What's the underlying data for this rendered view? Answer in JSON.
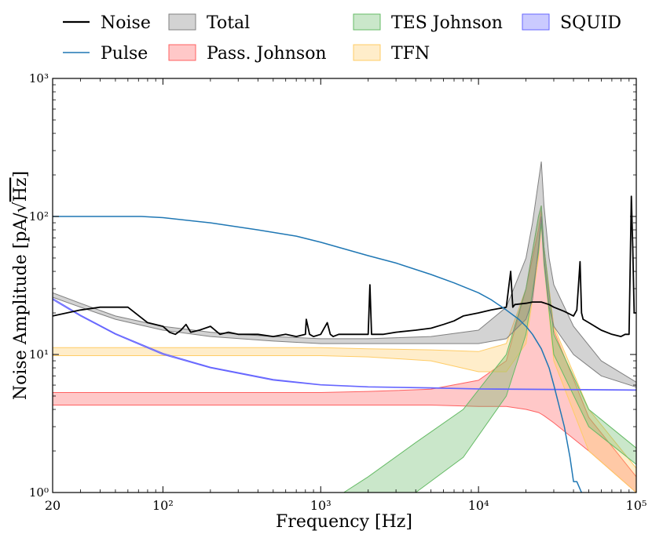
{
  "chart_data": {
    "type": "line",
    "xlabel": "Frequency [Hz]",
    "ylabel_prefix": "Noise Amplitude [pA/",
    "ylabel_sqrt": "Hz",
    "ylabel_suffix": "]",
    "x_scale": "log",
    "y_scale": "log",
    "xlim": [
      20,
      100000
    ],
    "ylim": [
      1,
      1000
    ],
    "grid": false,
    "legend_position": "top",
    "x_ticks": [
      {
        "value": 20,
        "label": "20"
      },
      {
        "value": 100,
        "label": "10²"
      },
      {
        "value": 1000,
        "label": "10³"
      },
      {
        "value": 10000,
        "label": "10⁴"
      },
      {
        "value": 100000,
        "label": "10⁵"
      }
    ],
    "y_ticks": [
      {
        "value": 1,
        "label": "10⁰"
      },
      {
        "value": 10,
        "label": "10¹"
      },
      {
        "value": 100,
        "label": "10²"
      },
      {
        "value": 1000,
        "label": "10³"
      }
    ],
    "legend": [
      {
        "name": "Noise",
        "kind": "line",
        "color": "#000000"
      },
      {
        "name": "Pulse",
        "kind": "line",
        "color": "#1f77b4"
      },
      {
        "name": "Total",
        "kind": "band",
        "color": "#808080"
      },
      {
        "name": "Pass. Johnson",
        "kind": "band",
        "color": "#ff6060"
      },
      {
        "name": "TES Johnson",
        "kind": "band",
        "color": "#66bb66"
      },
      {
        "name": "TFN",
        "kind": "band",
        "color": "#ffcc66"
      },
      {
        "name": "SQUID",
        "kind": "band",
        "color": "#6666ff"
      }
    ],
    "series": [
      {
        "name": "Noise",
        "kind": "line",
        "color": "#000000",
        "x": [
          20,
          30,
          40,
          60,
          80,
          100,
          110,
          120,
          130,
          140,
          150,
          170,
          200,
          230,
          260,
          300,
          400,
          500,
          600,
          700,
          800,
          810,
          850,
          900,
          1000,
          1100,
          1150,
          1200,
          1300,
          1500,
          2000,
          2050,
          2100,
          2500,
          3000,
          4000,
          5000,
          6000,
          7000,
          8000,
          10000,
          12000,
          15000,
          16000,
          16500,
          17000,
          20000,
          22000,
          25000,
          28000,
          30000,
          35000,
          40000,
          42000,
          44000,
          45000,
          46000,
          50000,
          60000,
          70000,
          80000,
          85000,
          90000,
          93000,
          95000,
          97000,
          100000
        ],
        "y": [
          19,
          21,
          22,
          22,
          17,
          16,
          14.5,
          14,
          15,
          16.5,
          14.5,
          15,
          16,
          14,
          14.5,
          14,
          14,
          13.5,
          14,
          13.5,
          14,
          18,
          14,
          13.5,
          14,
          17,
          14,
          13.5,
          14,
          14,
          14,
          32,
          14,
          14,
          14.5,
          15,
          15.5,
          16.5,
          17.5,
          19,
          20,
          21,
          22,
          40,
          22,
          23,
          23.5,
          24,
          24,
          23,
          22,
          20.5,
          19,
          21,
          47,
          20,
          18,
          17,
          15,
          14,
          13.5,
          14,
          14,
          140,
          60,
          20,
          20
        ]
      },
      {
        "name": "Pulse",
        "kind": "line",
        "color": "#1f77b4",
        "x": [
          20,
          50,
          73,
          100,
          200,
          400,
          700,
          1000,
          2000,
          3000,
          5000,
          7000,
          10000,
          12000,
          15000,
          18000,
          20000,
          22000,
          25000,
          28000,
          30000,
          32000,
          35000,
          38000,
          40000,
          42000,
          45000
        ],
        "y": [
          100,
          100,
          100,
          98,
          90,
          80,
          72,
          65,
          52,
          46,
          38,
          33,
          28,
          25,
          21,
          18,
          16,
          14,
          11,
          8,
          6,
          4.5,
          3,
          1.8,
          1.2,
          1.2,
          1
        ]
      },
      {
        "name": "Total",
        "kind": "band",
        "color": "#808080",
        "x": [
          20,
          30,
          50,
          100,
          200,
          500,
          1000,
          2000,
          5000,
          10000,
          15000,
          20000,
          22000,
          24000,
          25000,
          26000,
          28000,
          30000,
          40000,
          60000,
          100000
        ],
        "y_low": [
          26,
          22,
          18,
          15,
          13.5,
          12.5,
          12,
          12,
          12,
          12,
          13,
          18,
          25,
          60,
          100,
          50,
          22,
          16,
          10,
          7,
          5.8
        ],
        "y_high": [
          28,
          23.5,
          19,
          16,
          14.5,
          13.5,
          13,
          13,
          13.5,
          15,
          22,
          50,
          90,
          180,
          250,
          120,
          50,
          32,
          16,
          9,
          6.3
        ]
      },
      {
        "name": "Pass. Johnson",
        "kind": "band",
        "color": "#ff6060",
        "x": [
          20,
          100,
          500,
          1000,
          2000,
          5000,
          10000,
          15000,
          20000,
          24000,
          25000,
          26000,
          30000,
          50000,
          100000
        ],
        "y_low": [
          4.3,
          4.3,
          4.3,
          4.3,
          4.3,
          4.3,
          4.2,
          4.2,
          4.0,
          3.8,
          3.7,
          3.6,
          3.2,
          2.0,
          1.0
        ],
        "y_high": [
          5.3,
          5.3,
          5.3,
          5.3,
          5.4,
          5.6,
          6.5,
          9,
          30,
          80,
          110,
          60,
          15,
          3.5,
          1.3
        ]
      },
      {
        "name": "TES Johnson",
        "kind": "band",
        "color": "#66bb66",
        "x": [
          1400,
          2000,
          4000,
          8000,
          15000,
          20000,
          24000,
          25000,
          26000,
          30000,
          50000,
          100000
        ],
        "y_low": [
          1.0,
          1.0,
          1.0,
          1.8,
          5,
          14,
          55,
          90,
          45,
          10,
          3.0,
          1.6
        ],
        "y_high": [
          1.0,
          1.3,
          2.3,
          4.0,
          10,
          30,
          100,
          120,
          60,
          14,
          4.0,
          2.1
        ]
      },
      {
        "name": "TFN",
        "kind": "band",
        "color": "#ffcc66",
        "x": [
          20,
          100,
          500,
          1000,
          2000,
          5000,
          10000,
          15000,
          20000,
          24000,
          25000,
          26000,
          30000,
          50000,
          100000
        ],
        "y_low": [
          9.8,
          9.8,
          9.8,
          9.8,
          9.6,
          9.0,
          7.5,
          7.5,
          12,
          50,
          90,
          45,
          9,
          2.0,
          1.0
        ],
        "y_high": [
          11.2,
          11.2,
          11.2,
          11.2,
          11.0,
          10.8,
          10.5,
          12,
          30,
          100,
          120,
          60,
          16,
          4.0,
          1.5
        ]
      },
      {
        "name": "SQUID",
        "kind": "band",
        "color": "#6666ff",
        "x": [
          20,
          30,
          50,
          100,
          200,
          500,
          1000,
          2000,
          5000,
          10000,
          100000
        ],
        "y_low": [
          25,
          19,
          14,
          10,
          8,
          6.5,
          6,
          5.8,
          5.7,
          5.6,
          5.5
        ],
        "y_high": [
          25.5,
          19.3,
          14.2,
          10.2,
          8.1,
          6.6,
          6.05,
          5.85,
          5.75,
          5.65,
          5.55
        ]
      }
    ]
  }
}
